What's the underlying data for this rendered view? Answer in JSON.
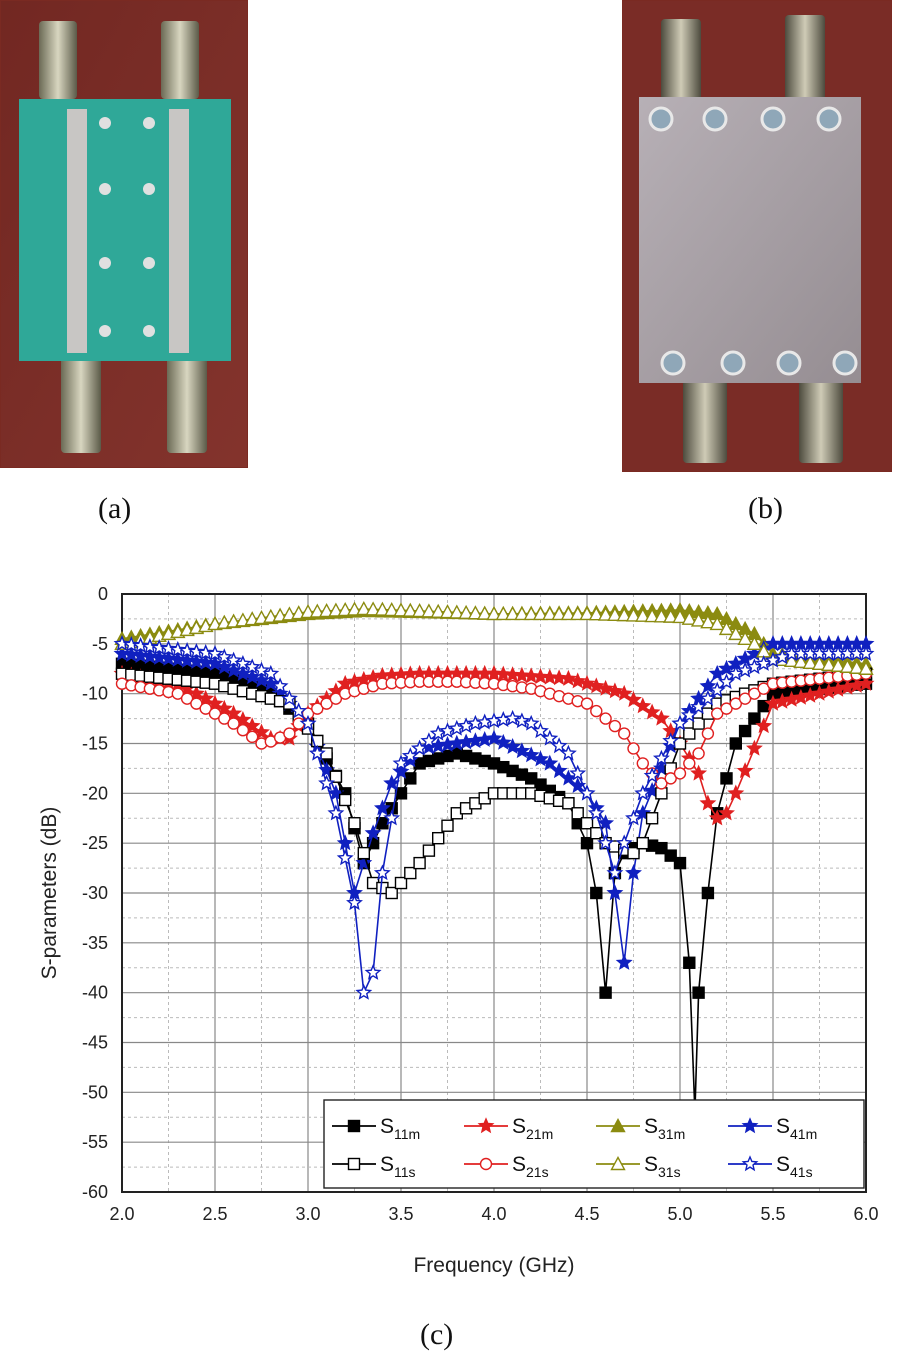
{
  "captions": {
    "a": "(a)",
    "b": "(b)",
    "c": "(c)"
  },
  "photos": {
    "a": {
      "subject": "fabricated coupler top view, green substrate",
      "background": "#7a2c26",
      "substrate": "#2fa898"
    },
    "b": {
      "subject": "fabricated coupler bottom view, metal ground plane",
      "background": "#7a2c26",
      "plate": "#a9a2a8"
    }
  },
  "chart_data": {
    "type": "line",
    "xlabel": "Frequency (GHz)",
    "ylabel": "S-parameters (dB)",
    "xlim": [
      2.0,
      6.0
    ],
    "ylim": [
      -60,
      0
    ],
    "xticks": [
      "2.0",
      "2.5",
      "3.0",
      "3.5",
      "4.0",
      "4.5",
      "5.0",
      "5.5",
      "6.0"
    ],
    "yticks": [
      "0",
      "-5",
      "-10",
      "-15",
      "-20",
      "-25",
      "-30",
      "-35",
      "-40",
      "-45",
      "-50",
      "-55",
      "-60"
    ],
    "grid": true,
    "legend_position": "bottom-right",
    "series": [
      {
        "name": "S11m",
        "base": "S",
        "sub": "11m",
        "color": "#000000",
        "marker": "square",
        "filled": true,
        "x": [
          2.0,
          2.5,
          2.8,
          3.0,
          3.2,
          3.3,
          3.4,
          3.6,
          3.8,
          4.0,
          4.2,
          4.4,
          4.5,
          4.55,
          4.6,
          4.65,
          4.7,
          4.8,
          4.9,
          5.0,
          5.05,
          5.08,
          5.1,
          5.15,
          5.2,
          5.3,
          5.5,
          6.0
        ],
        "y": [
          -7,
          -8,
          -10,
          -13,
          -20,
          -27,
          -23,
          -17,
          -16,
          -17,
          -18.5,
          -21,
          -25,
          -30,
          -40,
          -28,
          -26,
          -25,
          -25.5,
          -27,
          -37,
          -52,
          -40,
          -30,
          -22,
          -15,
          -10,
          -9
        ]
      },
      {
        "name": "S21m",
        "base": "S",
        "sub": "21m",
        "color": "#e02020",
        "marker": "star",
        "filled": true,
        "x": [
          2.0,
          2.3,
          2.6,
          2.8,
          2.9,
          3.0,
          3.2,
          3.4,
          3.6,
          4.0,
          4.4,
          4.7,
          4.9,
          5.0,
          5.1,
          5.15,
          5.2,
          5.25,
          5.3,
          5.5,
          6.0
        ],
        "y": [
          -8,
          -9,
          -12,
          -14.5,
          -14.5,
          -12,
          -9,
          -8.2,
          -8,
          -8,
          -8.5,
          -10,
          -12.5,
          -15,
          -18,
          -21,
          -22.5,
          -22,
          -20,
          -11,
          -9
        ]
      },
      {
        "name": "S31m",
        "base": "S",
        "sub": "31m",
        "color": "#8b8b10",
        "marker": "triangle",
        "filled": true,
        "x": [
          2.0,
          2.5,
          3.0,
          3.3,
          3.6,
          4.0,
          4.5,
          5.0,
          5.2,
          5.4,
          5.5,
          6.0
        ],
        "y": [
          -4.5,
          -3,
          -2,
          -1.7,
          -1.8,
          -2,
          -1.9,
          -1.6,
          -2,
          -4,
          -6,
          -7
        ]
      },
      {
        "name": "S41m",
        "base": "S",
        "sub": "41m",
        "color": "#1020c0",
        "marker": "star",
        "filled": true,
        "x": [
          2.0,
          2.5,
          2.8,
          3.0,
          3.15,
          3.25,
          3.3,
          3.35,
          3.45,
          3.6,
          4.0,
          4.3,
          4.5,
          4.6,
          4.65,
          4.7,
          4.75,
          4.8,
          5.0,
          5.2,
          5.5,
          6.0
        ],
        "y": [
          -6,
          -7,
          -9,
          -13,
          -20,
          -30,
          -27,
          -24,
          -19,
          -15.5,
          -14.5,
          -17,
          -20,
          -23,
          -30,
          -37,
          -28,
          -22,
          -13,
          -8,
          -5,
          -5
        ]
      },
      {
        "name": "S11s",
        "base": "S",
        "sub": "11s",
        "color": "#000000",
        "marker": "square",
        "filled": false,
        "x": [
          2.0,
          2.5,
          2.9,
          3.1,
          3.25,
          3.35,
          3.45,
          3.6,
          3.8,
          4.0,
          4.2,
          4.4,
          4.6,
          4.75,
          4.8,
          4.9,
          5.0,
          5.2,
          5.5,
          6.0
        ],
        "y": [
          -8,
          -9,
          -11,
          -16,
          -23,
          -29,
          -30,
          -27,
          -22,
          -20,
          -20,
          -21,
          -25,
          -26,
          -25,
          -20,
          -15,
          -11,
          -9,
          -8
        ]
      },
      {
        "name": "S21s",
        "base": "S",
        "sub": "21s",
        "color": "#e02020",
        "marker": "circle",
        "filled": false,
        "x": [
          2.0,
          2.3,
          2.6,
          2.75,
          2.8,
          2.9,
          3.0,
          3.2,
          3.4,
          3.6,
          3.8,
          4.0,
          4.2,
          4.5,
          4.7,
          4.8,
          4.9,
          5.0,
          5.1,
          5.2,
          5.5,
          6.0
        ],
        "y": [
          -9,
          -10,
          -13,
          -15,
          -14.8,
          -14,
          -12,
          -10,
          -9,
          -8.8,
          -8.8,
          -9,
          -9.5,
          -11,
          -14,
          -17,
          -19,
          -18,
          -16,
          -12,
          -9,
          -8
        ]
      },
      {
        "name": "S31s",
        "base": "S",
        "sub": "31s",
        "color": "#8b8b10",
        "marker": "triangle",
        "filled": false,
        "x": [
          2.0,
          2.5,
          3.0,
          3.3,
          3.6,
          4.0,
          4.5,
          5.0,
          5.2,
          5.4,
          5.5,
          6.0
        ],
        "y": [
          -5,
          -3,
          -1.8,
          -1.5,
          -1.7,
          -2,
          -2,
          -2.3,
          -3,
          -5,
          -6.5,
          -7.5
        ]
      },
      {
        "name": "S41s",
        "base": "S",
        "sub": "41s",
        "color": "#1020c0",
        "marker": "star",
        "filled": false,
        "x": [
          2.0,
          2.5,
          2.8,
          3.0,
          3.15,
          3.25,
          3.3,
          3.35,
          3.4,
          3.5,
          3.7,
          3.9,
          4.1,
          4.2,
          4.4,
          4.55,
          4.65,
          4.7,
          4.8,
          5.0,
          5.3,
          5.6,
          6.0
        ],
        "y": [
          -5,
          -6,
          -8,
          -13,
          -22,
          -31,
          -40,
          -38,
          -28,
          -17,
          -14,
          -13,
          -12.5,
          -13,
          -16,
          -22,
          -28,
          -25,
          -20,
          -13,
          -8,
          -6,
          -6
        ]
      }
    ]
  }
}
